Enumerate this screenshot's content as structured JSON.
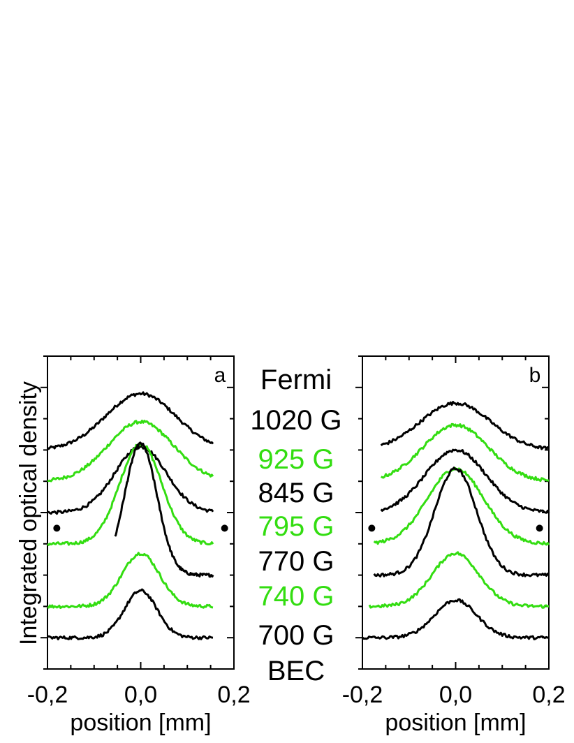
{
  "colors": {
    "black": "#000000",
    "green": "#33dd11"
  },
  "ylabel": "Integrated optical density",
  "center_labels": [
    {
      "text": "Fermi",
      "color": "black"
    },
    {
      "text": "1020 G",
      "color": "black"
    },
    {
      "text": "925 G",
      "color": "green"
    },
    {
      "text": "845 G",
      "color": "black"
    },
    {
      "text": "795 G",
      "color": "green"
    },
    {
      "text": "770 G",
      "color": "black"
    },
    {
      "text": "740 G",
      "color": "green"
    },
    {
      "text": "700 G",
      "color": "black"
    },
    {
      "text": "BEC",
      "color": "black"
    }
  ],
  "chart_data": [
    {
      "type": "line",
      "panel_label": "a",
      "xlabel": "position [mm]",
      "ylabel": "Integrated optical density",
      "xlim": [
        -0.2,
        0.2
      ],
      "xticks": [
        "-0,2",
        "0,0",
        "0,2"
      ],
      "ylim": [
        -0.5,
        4.5
      ],
      "markers": [
        {
          "x": -0.18,
          "y": 1.75
        },
        {
          "x": 0.18,
          "y": 1.75
        }
      ],
      "series": [
        {
          "field_G": 1020,
          "color": "black",
          "baseline": 3.0,
          "peak": 0.9,
          "width": 0.075,
          "xmin": -0.2,
          "xmax": 0.155
        },
        {
          "field_G": 925,
          "color": "green",
          "baseline": 2.5,
          "peak": 0.95,
          "width": 0.07,
          "xmin": -0.2,
          "xmax": 0.155
        },
        {
          "field_G": 845,
          "color": "black",
          "baseline": 2.0,
          "peak": 1.05,
          "width": 0.055,
          "xmin": -0.2,
          "xmax": 0.155
        },
        {
          "field_G": 795,
          "color": "green",
          "baseline": 1.5,
          "peak": 1.6,
          "width": 0.045,
          "xmin": -0.2,
          "xmax": 0.155
        },
        {
          "field_G": 770,
          "color": "black",
          "baseline": 1.0,
          "peak": 2.1,
          "width": 0.035,
          "xmin": -0.055,
          "xmax": 0.155
        },
        {
          "field_G": 740,
          "color": "green",
          "baseline": 0.5,
          "peak": 0.85,
          "width": 0.04,
          "xmin": -0.2,
          "xmax": 0.155
        },
        {
          "field_G": 700,
          "color": "black",
          "baseline": 0.0,
          "peak": 0.75,
          "width": 0.035,
          "xmin": -0.2,
          "xmax": 0.155
        }
      ]
    },
    {
      "type": "line",
      "panel_label": "b",
      "xlabel": "position [mm]",
      "ylabel": "",
      "xlim": [
        -0.2,
        0.2
      ],
      "xticks": [
        "-0,2",
        "0,0",
        "0,2"
      ],
      "ylim": [
        -0.5,
        4.5
      ],
      "markers": [
        {
          "x": -0.18,
          "y": 1.75
        },
        {
          "x": 0.18,
          "y": 1.75
        }
      ],
      "series": [
        {
          "field_G": 1020,
          "color": "black",
          "baseline": 3.0,
          "peak": 0.75,
          "width": 0.075,
          "xmin": -0.16,
          "xmax": 0.2
        },
        {
          "field_G": 925,
          "color": "green",
          "baseline": 2.5,
          "peak": 0.9,
          "width": 0.07,
          "xmin": -0.16,
          "xmax": 0.2
        },
        {
          "field_G": 845,
          "color": "black",
          "baseline": 2.0,
          "peak": 1.0,
          "width": 0.065,
          "xmin": -0.16,
          "xmax": 0.2
        },
        {
          "field_G": 795,
          "color": "green",
          "baseline": 1.5,
          "peak": 1.2,
          "width": 0.06,
          "xmin": -0.175,
          "xmax": 0.2
        },
        {
          "field_G": 770,
          "color": "black",
          "baseline": 1.0,
          "peak": 1.7,
          "width": 0.045,
          "xmin": -0.175,
          "xmax": 0.2
        },
        {
          "field_G": 740,
          "color": "green",
          "baseline": 0.5,
          "peak": 0.85,
          "width": 0.05,
          "xmin": -0.185,
          "xmax": 0.2
        },
        {
          "field_G": 700,
          "color": "black",
          "baseline": 0.0,
          "peak": 0.6,
          "width": 0.045,
          "xmin": -0.2,
          "xmax": 0.2
        }
      ]
    }
  ]
}
